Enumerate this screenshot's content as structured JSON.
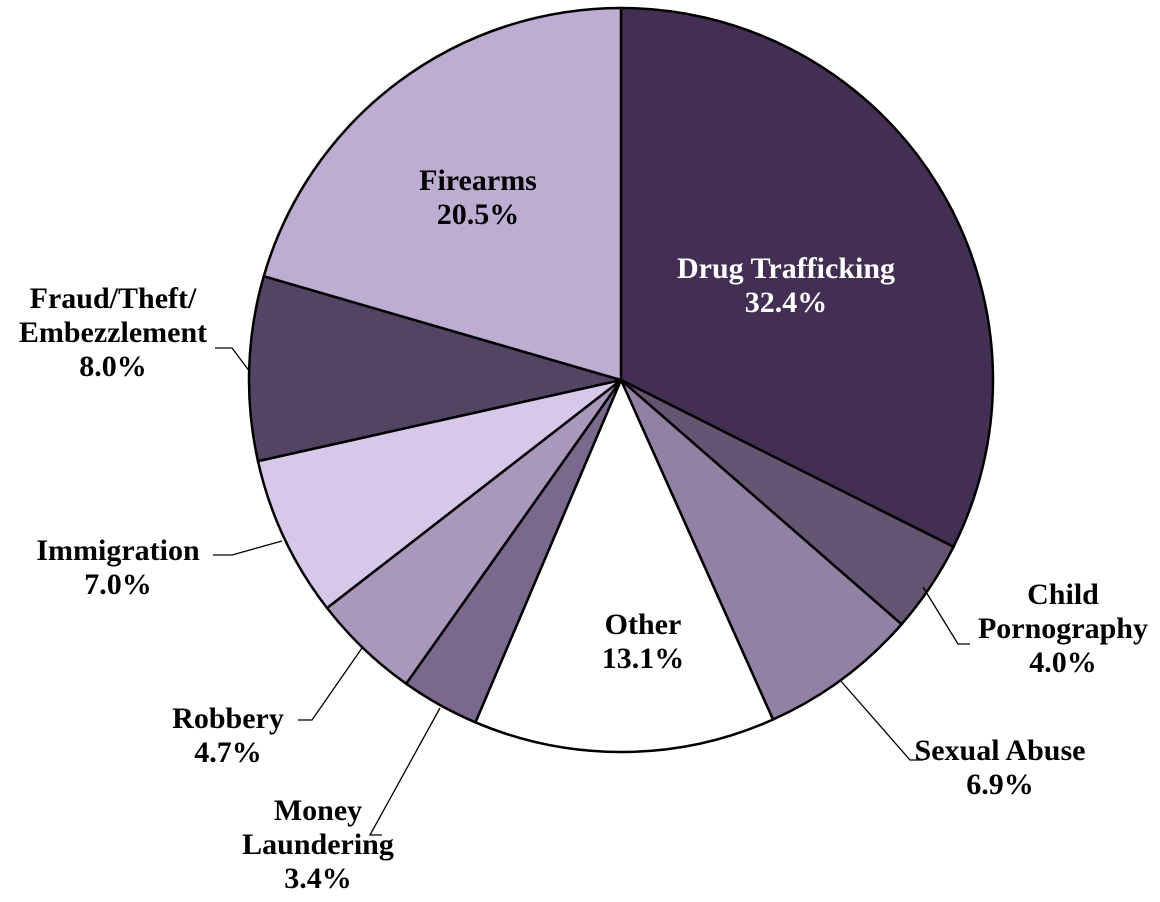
{
  "chart_data": {
    "type": "pie",
    "title": "",
    "slices": [
      {
        "label": "Drug Trafficking",
        "pct_label": "32.4%",
        "value": 32.4,
        "color": "#432f53",
        "text_color": "#ffffff"
      },
      {
        "label": "Child Pornography",
        "label_lines": [
          "Child",
          "Pornography"
        ],
        "pct_label": "4.0%",
        "value": 4.0,
        "color": "#655573",
        "text_color": "#000000"
      },
      {
        "label": "Sexual Abuse",
        "pct_label": "6.9%",
        "value": 6.9,
        "color": "#9281a5",
        "text_color": "#000000"
      },
      {
        "label": "Other",
        "pct_label": "13.1%",
        "value": 13.1,
        "color": "#ffffff",
        "text_color": "#000000"
      },
      {
        "label": "Money Laundering",
        "label_lines": [
          "Money",
          "Laundering"
        ],
        "pct_label": "3.4%",
        "value": 3.4,
        "color": "#7a698d",
        "text_color": "#000000"
      },
      {
        "label": "Robbery",
        "pct_label": "4.7%",
        "value": 4.7,
        "color": "#a998bc",
        "text_color": "#000000"
      },
      {
        "label": "Immigration",
        "pct_label": "7.0%",
        "value": 7.0,
        "color": "#d7c8ea",
        "text_color": "#000000"
      },
      {
        "label": "Fraud/Theft/Embezzlement",
        "label_lines": [
          "Fraud/Theft/",
          "Embezzlement"
        ],
        "pct_label": "8.0%",
        "value": 8.0,
        "color": "#544463",
        "text_color": "#000000"
      },
      {
        "label": "Firearms",
        "pct_label": "20.5%",
        "value": 20.5,
        "color": "#beadd2",
        "text_color": "#000000"
      }
    ],
    "start_angle": "12 o'clock",
    "direction": "clockwise"
  }
}
